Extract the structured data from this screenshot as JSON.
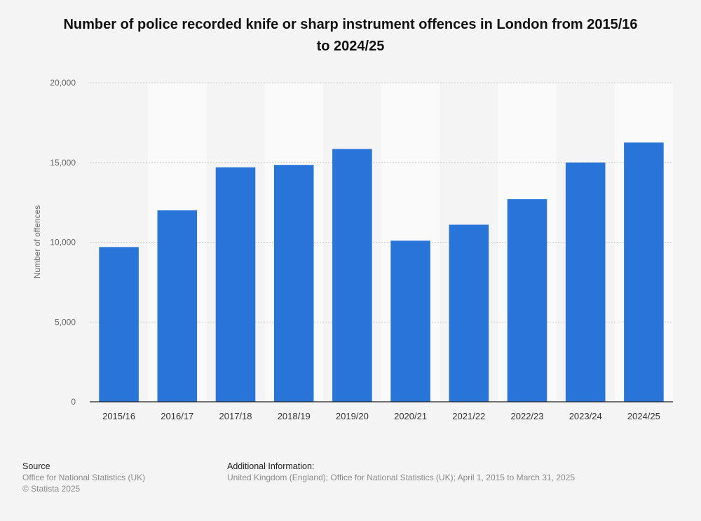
{
  "title": "Number of police recorded knife or sharp instrument offences in London from 2015/16 to 2024/25",
  "footer": {
    "source_label": "Source",
    "source_text": "Office for National Statistics (UK)",
    "copyright": "© Statista 2025",
    "info_label": "Additional Information:",
    "info_text": "United Kingdom (England); Office for National Statistics (UK); April 1, 2015 to March 31, 2025"
  },
  "colors": {
    "bar": "#2874d9",
    "band": "#fafafa",
    "grid": "#cccccc"
  },
  "chart_data": {
    "type": "bar",
    "categories": [
      "2015/16",
      "2016/17",
      "2017/18",
      "2018/19",
      "2019/20",
      "2020/21",
      "2021/22",
      "2022/23",
      "2023/24",
      "2024/25"
    ],
    "values": [
      9700,
      12000,
      14700,
      14850,
      15850,
      10100,
      11100,
      12700,
      15000,
      16250
    ],
    "ylabel": "Number of offences",
    "xlabel": "",
    "ylim": [
      0,
      20000
    ],
    "yticks": [
      0,
      5000,
      10000,
      15000,
      20000
    ],
    "ytick_labels": [
      "0",
      "5,000",
      "10,000",
      "15,000",
      "20,000"
    ],
    "grid": true
  }
}
